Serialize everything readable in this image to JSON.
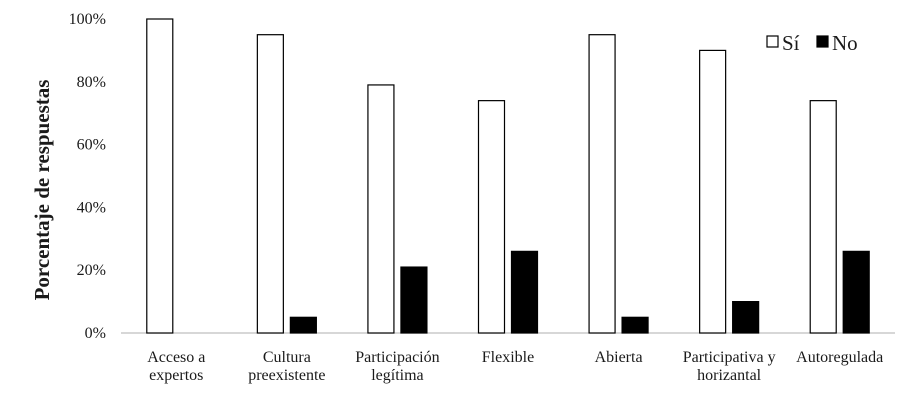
{
  "chart_data": {
    "type": "bar",
    "title": "",
    "xlabel": "",
    "ylabel": "Porcentaje de respuestas",
    "ylim": [
      0,
      100
    ],
    "ytick_labels": [
      "0%",
      "20%",
      "40%",
      "60%",
      "80%",
      "100%"
    ],
    "ytick_values": [
      0,
      20,
      40,
      60,
      80,
      100
    ],
    "categories": [
      [
        "Acceso a",
        "expertos"
      ],
      [
        "Cultura",
        "preexistente"
      ],
      [
        "Participación",
        "legítima"
      ],
      [
        "Flexible"
      ],
      [
        "Abierta"
      ],
      [
        "Participativa y",
        "horizantal"
      ],
      [
        "Autoregulada"
      ]
    ],
    "series": [
      {
        "name": "Sí",
        "color": "#ffffff",
        "values": [
          100,
          95,
          79,
          74,
          95,
          90,
          74
        ]
      },
      {
        "name": "No",
        "color": "#000000",
        "values": [
          0,
          5,
          21,
          26,
          5,
          10,
          26
        ]
      }
    ],
    "legend_position": "top-right",
    "grid": false
  }
}
